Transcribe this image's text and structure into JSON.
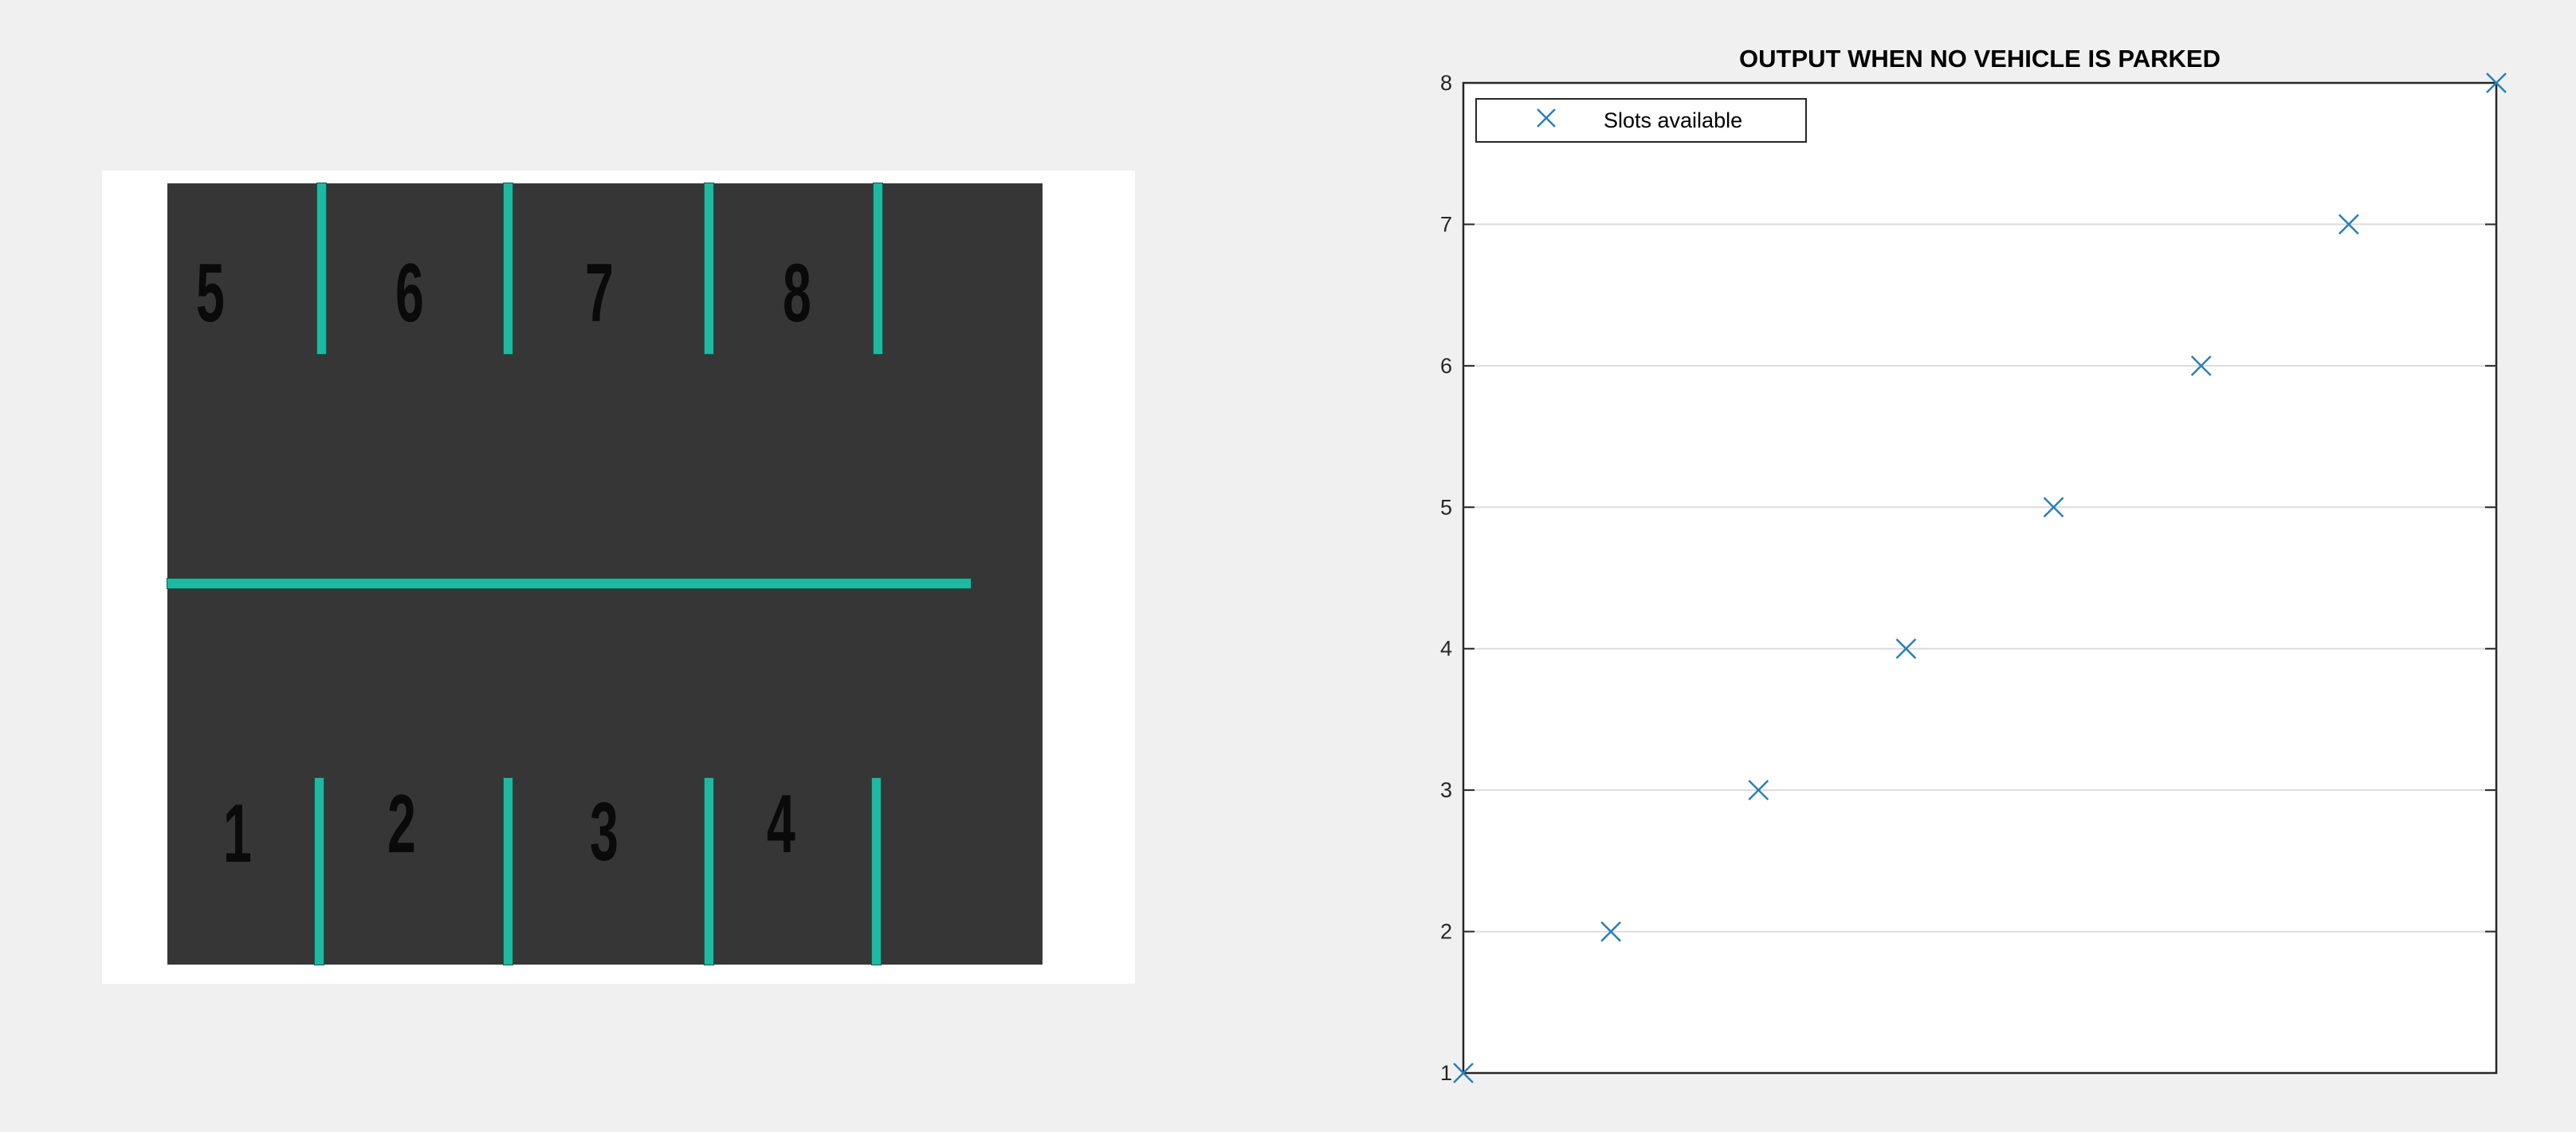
{
  "parking_diagram": {
    "slots_top": [
      "5",
      "6",
      "7",
      "8"
    ],
    "slots_bottom": [
      "1",
      "2",
      "3",
      "4"
    ],
    "colors": {
      "background": "#363636",
      "line": "#1fb8a0",
      "number": "#0a0a0a",
      "frame": "#ffffff"
    }
  },
  "chart_data": {
    "type": "scatter",
    "title": "OUTPUT WHEN NO VEHICLE IS PARKED",
    "xlabel": "",
    "ylabel": "",
    "xlim": [
      1,
      8
    ],
    "ylim": [
      1,
      8
    ],
    "yticks": [
      1,
      2,
      3,
      4,
      5,
      6,
      7,
      8
    ],
    "xticks": [],
    "grid": "horizontal",
    "legend_position": "top-left",
    "series": [
      {
        "name": "Slots available",
        "marker": "x",
        "color": "#2a7fba",
        "x": [
          1,
          2,
          3,
          4,
          5,
          6,
          7,
          8
        ],
        "y": [
          1,
          2,
          3,
          4,
          5,
          6,
          7,
          8
        ]
      }
    ]
  }
}
